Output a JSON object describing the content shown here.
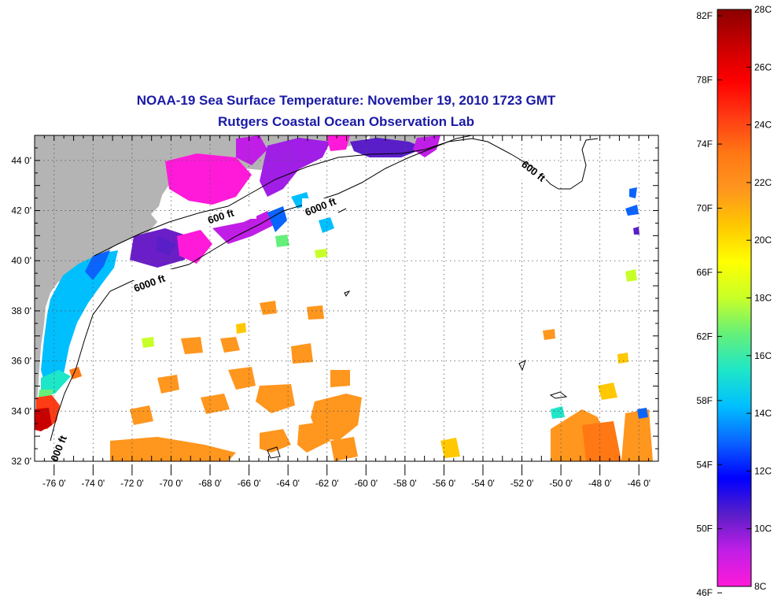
{
  "title": {
    "line1": "NOAA-19 Sea Surface Temperature:  November 19, 2010 1723 GMT",
    "line2": "Rutgers Coastal Ocean Observation Lab"
  },
  "map": {
    "lon_range": [
      -77,
      -45
    ],
    "lat_range": [
      32,
      45
    ],
    "grid": true,
    "lon_ticks": [
      "-76 0'",
      "-74 0'",
      "-72 0'",
      "-70 0'",
      "-68 0'",
      "-66 0'",
      "-64 0'",
      "-62 0'",
      "-60 0'",
      "-58 0'",
      "-56 0'",
      "-54 0'",
      "-52 0'",
      "-50 0'",
      "-48 0'",
      "-46 0'"
    ],
    "lat_ticks": [
      "32 0'",
      "34 0'",
      "36 0'",
      "38 0'",
      "40 0'",
      "42 0'",
      "44 0'"
    ],
    "contour_labels": [
      "600 ft",
      "6000 ft",
      "6000 ft",
      "600 ft",
      "000 ft"
    ],
    "land_color": "#b4b4b4"
  },
  "colorbar": {
    "fahrenheit_labels": [
      "82F",
      "78F",
      "74F",
      "70F",
      "66F",
      "62F",
      "58F",
      "54F",
      "50F",
      "46F"
    ],
    "celsius_labels": [
      "28C",
      "26C",
      "24C",
      "22C",
      "20C",
      "18C",
      "16C",
      "14C",
      "12C",
      "10C",
      "8C"
    ],
    "range_c": [
      8,
      28
    ],
    "colors": [
      "#ff1ad9",
      "#c01ee6",
      "#5a1ec8",
      "#0000ff",
      "#0a64ff",
      "#00bfff",
      "#1ee6c8",
      "#64f07a",
      "#c8ff28",
      "#ffff00",
      "#ffc800",
      "#ff961e",
      "#ff7814",
      "#ff3c14",
      "#ff0000",
      "#c80000",
      "#8b0000"
    ]
  }
}
